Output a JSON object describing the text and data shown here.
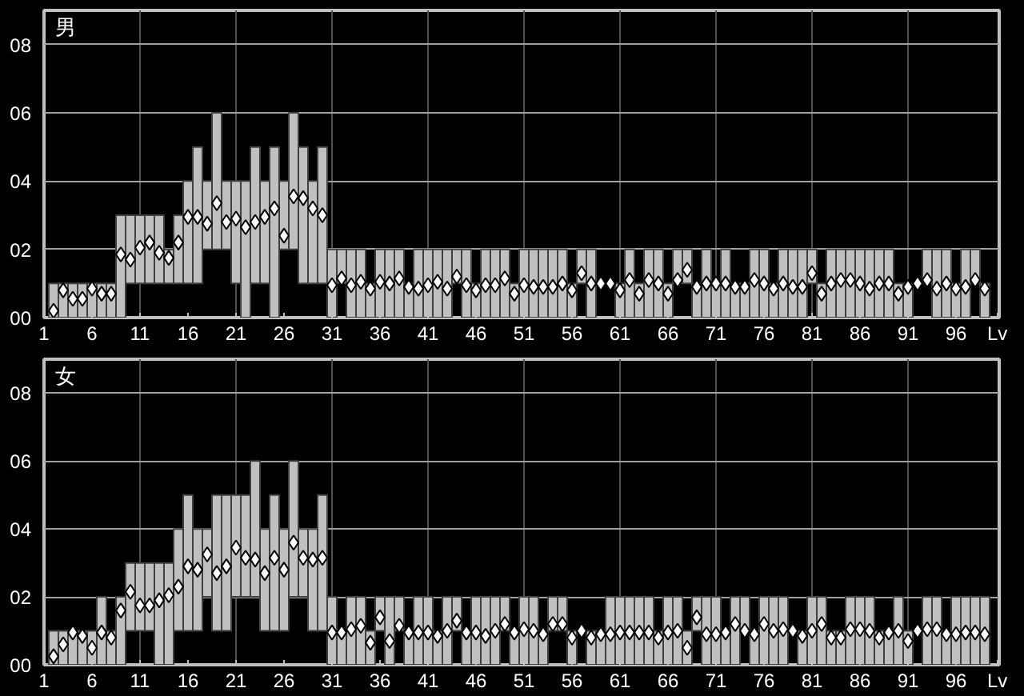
{
  "chart_data": [
    {
      "type": "bar",
      "title": "男",
      "x": [
        2,
        3,
        4,
        5,
        6,
        7,
        8,
        9,
        10,
        11,
        12,
        13,
        14,
        15,
        16,
        17,
        18,
        19,
        20,
        21,
        22,
        23,
        24,
        25,
        26,
        27,
        28,
        29,
        30,
        31,
        32,
        33,
        34,
        35,
        36,
        37,
        38,
        39,
        40,
        41,
        42,
        43,
        44,
        45,
        46,
        47,
        48,
        49,
        50,
        51,
        52,
        53,
        54,
        55,
        56,
        57,
        58,
        59,
        60,
        61,
        62,
        63,
        64,
        65,
        66,
        67,
        68,
        69,
        70,
        71,
        72,
        73,
        74,
        75,
        76,
        77,
        78,
        79,
        80,
        81,
        82,
        83,
        84,
        85,
        86,
        87,
        88,
        89,
        90,
        91,
        92,
        93,
        94,
        95,
        96,
        97,
        98,
        99
      ],
      "series": [
        {
          "type": "bar",
          "color": "#c0c0c0",
          "base": [
            0,
            0,
            0,
            0,
            0,
            0,
            0,
            0,
            1,
            1,
            1,
            1,
            1,
            1,
            1,
            1,
            2,
            2,
            2,
            1,
            0,
            1,
            1,
            0,
            2,
            2,
            1,
            1,
            1,
            0,
            1,
            0,
            0,
            0,
            0,
            0,
            0,
            0,
            0,
            0,
            0,
            0,
            1,
            0,
            0,
            0,
            0,
            0,
            0,
            0,
            0,
            0,
            0,
            0,
            0,
            1,
            0,
            null,
            null,
            0,
            0,
            0,
            0,
            0,
            0,
            1,
            1,
            0,
            0,
            0,
            0,
            0,
            0,
            0,
            0,
            0,
            0,
            0,
            0,
            1,
            0,
            0,
            0,
            0,
            0,
            0,
            0,
            0,
            0,
            0,
            null,
            1,
            0,
            0,
            0,
            0,
            1,
            0
          ],
          "values": [
            1,
            1,
            1,
            1,
            1,
            1,
            1,
            3,
            2,
            2,
            2,
            2,
            1,
            2,
            3,
            4,
            2,
            4,
            2,
            3,
            4,
            4,
            3,
            5,
            2,
            4,
            4,
            3,
            4,
            2,
            1,
            2,
            2,
            1,
            2,
            2,
            2,
            1,
            2,
            2,
            2,
            2,
            1,
            2,
            1,
            2,
            2,
            2,
            1,
            2,
            2,
            2,
            2,
            2,
            1,
            1,
            2,
            null,
            null,
            1,
            2,
            1,
            2,
            2,
            1,
            1,
            1,
            1,
            2,
            1,
            2,
            1,
            1,
            2,
            2,
            1,
            2,
            2,
            2,
            1,
            1,
            2,
            2,
            2,
            2,
            2,
            2,
            2,
            1,
            1,
            null,
            1,
            2,
            2,
            1,
            2,
            1,
            1
          ]
        },
        {
          "type": "scatter",
          "color": "#ffffff",
          "values": [
            0.2,
            0.8,
            0.55,
            0.55,
            0.85,
            0.7,
            0.7,
            1.85,
            1.7,
            2.05,
            2.2,
            1.9,
            1.75,
            2.2,
            2.95,
            2.95,
            2.75,
            3.35,
            2.8,
            2.9,
            2.65,
            2.8,
            2.95,
            3.2,
            2.4,
            3.55,
            3.5,
            3.2,
            3.0,
            0.95,
            1.15,
            0.95,
            1.05,
            0.85,
            1.05,
            1.0,
            1.15,
            0.9,
            0.85,
            0.95,
            1.05,
            0.85,
            1.2,
            0.95,
            0.8,
            0.95,
            0.95,
            1.15,
            0.7,
            0.95,
            0.9,
            0.9,
            0.9,
            1.0,
            0.8,
            1.3,
            1.0,
            1.0,
            1.0,
            0.8,
            1.1,
            0.7,
            1.1,
            1.0,
            0.7,
            1.1,
            1.4,
            0.9,
            1.0,
            1.0,
            1.0,
            0.9,
            0.9,
            1.1,
            1.0,
            0.85,
            1.0,
            0.9,
            0.9,
            1.3,
            0.7,
            1.0,
            1.1,
            1.1,
            1.0,
            0.85,
            1.0,
            1.0,
            0.7,
            0.9,
            1.0,
            1.1,
            0.85,
            1.0,
            0.85,
            0.9,
            1.1,
            0.85
          ]
        }
      ],
      "marker": "diamond",
      "grid": true,
      "xlim": [
        1,
        100.5
      ],
      "ylim": [
        0,
        9
      ],
      "xticks": [
        1,
        6,
        11,
        16,
        21,
        26,
        31,
        36,
        41,
        46,
        51,
        56,
        61,
        66,
        71,
        76,
        81,
        86,
        91,
        96,
        {
          "value": 100.3,
          "label": "Lv"
        }
      ],
      "yticks": [
        {
          "value": 0,
          "label": "00"
        },
        {
          "value": 2,
          "label": "02"
        },
        {
          "value": 4,
          "label": "04"
        },
        {
          "value": 6,
          "label": "06"
        },
        {
          "value": 8,
          "label": "08"
        }
      ]
    },
    {
      "type": "bar",
      "title": "女",
      "x": [
        2,
        3,
        4,
        5,
        6,
        7,
        8,
        9,
        10,
        11,
        12,
        13,
        14,
        15,
        16,
        17,
        18,
        19,
        20,
        21,
        22,
        23,
        24,
        25,
        26,
        27,
        28,
        29,
        30,
        31,
        32,
        33,
        34,
        35,
        36,
        37,
        38,
        39,
        40,
        41,
        42,
        43,
        44,
        45,
        46,
        47,
        48,
        49,
        50,
        51,
        52,
        53,
        54,
        55,
        56,
        57,
        58,
        59,
        60,
        61,
        62,
        63,
        64,
        65,
        66,
        67,
        68,
        69,
        70,
        71,
        72,
        73,
        74,
        75,
        76,
        77,
        78,
        79,
        80,
        81,
        82,
        83,
        84,
        85,
        86,
        87,
        88,
        89,
        90,
        91,
        92,
        93,
        94,
        95,
        96,
        97,
        98,
        99
      ],
      "series": [
        {
          "type": "bar",
          "color": "#c0c0c0",
          "base": [
            0,
            0,
            0,
            0,
            0,
            0,
            0,
            0,
            1,
            1,
            1,
            0,
            0,
            1,
            1,
            1,
            2,
            1,
            1,
            2,
            2,
            2,
            1,
            1,
            1,
            2,
            2,
            1,
            1,
            0,
            0,
            0,
            0,
            0,
            1,
            0,
            1,
            0,
            0,
            0,
            0,
            0,
            1,
            0,
            0,
            0,
            0,
            1,
            0,
            0,
            0,
            0,
            1,
            1,
            0,
            null,
            0,
            0,
            0,
            0,
            0,
            0,
            0,
            0,
            0,
            0,
            0,
            1,
            0,
            0,
            0,
            0,
            1,
            0,
            0,
            0,
            0,
            null,
            0,
            0,
            0,
            0,
            0,
            0,
            0,
            0,
            0,
            0,
            0,
            0,
            null,
            0,
            0,
            0,
            0,
            0,
            0,
            0
          ],
          "values": [
            1,
            1,
            1,
            1,
            1,
            2,
            1,
            2,
            2,
            2,
            2,
            3,
            3,
            3,
            4,
            3,
            2,
            4,
            4,
            3,
            3,
            4,
            3,
            4,
            3,
            4,
            2,
            3,
            4,
            2,
            1,
            2,
            2,
            1,
            1,
            2,
            1,
            1,
            2,
            2,
            1,
            2,
            1,
            1,
            2,
            2,
            2,
            1,
            1,
            2,
            2,
            1,
            1,
            1,
            1,
            null,
            1,
            1,
            2,
            2,
            2,
            2,
            2,
            1,
            2,
            2,
            1,
            1,
            2,
            2,
            1,
            2,
            1,
            1,
            2,
            2,
            2,
            null,
            1,
            2,
            2,
            1,
            1,
            2,
            2,
            2,
            1,
            1,
            2,
            1,
            null,
            2,
            2,
            1,
            2,
            2,
            2,
            2
          ]
        },
        {
          "type": "scatter",
          "color": "#ffffff",
          "values": [
            0.25,
            0.6,
            0.95,
            0.85,
            0.5,
            0.95,
            0.8,
            1.6,
            2.15,
            1.75,
            1.75,
            1.9,
            2.05,
            2.3,
            2.9,
            2.8,
            3.25,
            2.7,
            2.9,
            3.45,
            3.15,
            3.1,
            2.7,
            3.15,
            2.8,
            3.6,
            3.15,
            3.1,
            3.15,
            0.95,
            0.95,
            1.05,
            1.15,
            0.65,
            1.4,
            0.7,
            1.15,
            0.95,
            0.95,
            0.95,
            0.85,
            1.0,
            1.3,
            0.95,
            0.95,
            0.85,
            1.0,
            1.2,
            0.95,
            1.05,
            1.0,
            0.9,
            1.2,
            1.2,
            0.8,
            1.0,
            0.8,
            0.9,
            0.9,
            0.95,
            0.95,
            0.95,
            0.95,
            0.8,
            0.95,
            1.0,
            0.5,
            1.4,
            0.9,
            0.9,
            0.95,
            1.2,
            1.0,
            0.9,
            1.2,
            1.0,
            1.05,
            1.0,
            0.85,
            1.0,
            1.2,
            0.8,
            0.8,
            1.05,
            1.05,
            1.0,
            0.8,
            0.95,
            1.0,
            0.7,
            1.0,
            1.05,
            1.05,
            0.9,
            0.9,
            0.95,
            0.95,
            0.9
          ]
        }
      ],
      "marker": "diamond",
      "grid": true,
      "xlim": [
        1,
        100.5
      ],
      "ylim": [
        0,
        9
      ],
      "xticks": [
        1,
        6,
        11,
        16,
        21,
        26,
        31,
        36,
        41,
        46,
        51,
        56,
        61,
        66,
        71,
        76,
        81,
        86,
        91,
        96,
        {
          "value": 100.3,
          "label": "Lv"
        }
      ],
      "yticks": [
        {
          "value": 0,
          "label": "00"
        },
        {
          "value": 2,
          "label": "02"
        },
        {
          "value": 4,
          "label": "04"
        },
        {
          "value": 6,
          "label": "06"
        },
        {
          "value": 8,
          "label": "08"
        }
      ]
    }
  ]
}
